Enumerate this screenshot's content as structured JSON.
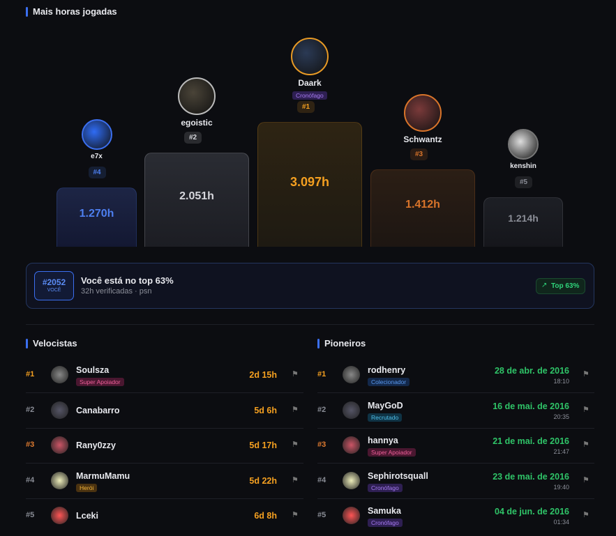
{
  "section_title": "Mais horas jogadas",
  "podium": [
    {
      "name": "e7x",
      "rank": "#4",
      "hours": "1.270h"
    },
    {
      "name": "egoistic",
      "rank": "#2",
      "hours": "2.051h"
    },
    {
      "name": "Daark",
      "tag": "Cronófago",
      "rank": "#1",
      "hours": "3.097h"
    },
    {
      "name": "Schwantz",
      "rank": "#3",
      "hours": "1.412h"
    },
    {
      "name": "kenshin",
      "rank": "#5",
      "hours": "1.214h"
    }
  ],
  "you": {
    "rank": "#2052",
    "label": "VOCÊ",
    "title": "Você está no top 63%",
    "subtitle": "32h verificadas · psn",
    "badge": "Top 63%"
  },
  "velocistas": {
    "title": "Velocistas",
    "rows": [
      {
        "rank": "#1",
        "name": "Soulsza",
        "tag": "Super Apoiador",
        "value": "2d 15h"
      },
      {
        "rank": "#2",
        "name": "Canabarro",
        "value": "5d 6h"
      },
      {
        "rank": "#3",
        "name": "Rany0zzy",
        "value": "5d 17h"
      },
      {
        "rank": "#4",
        "name": "MarmuMamu",
        "tag": "Herói",
        "value": "5d 22h"
      },
      {
        "rank": "#5",
        "name": "Lceki",
        "value": "6d 8h"
      }
    ]
  },
  "pioneiros": {
    "title": "Pioneiros",
    "rows": [
      {
        "rank": "#1",
        "name": "rodhenry",
        "tag": "Colecionador",
        "date": "28 de abr. de 2016",
        "time": "18:10"
      },
      {
        "rank": "#2",
        "name": "MayGoD",
        "tag": "Recrutado",
        "date": "16 de mai. de 2016",
        "time": "20:35"
      },
      {
        "rank": "#3",
        "name": "hannya",
        "tag": "Super Apoiador",
        "date": "21 de mai. de 2016",
        "time": "21:47"
      },
      {
        "rank": "#4",
        "name": "Sephirotsquall",
        "tag": "Cronófago",
        "date": "23 de mai. de 2016",
        "time": "19:40"
      },
      {
        "rank": "#5",
        "name": "Samuka",
        "tag": "Cronófago",
        "date": "04 de jun. de 2016",
        "time": "01:34"
      }
    ]
  }
}
